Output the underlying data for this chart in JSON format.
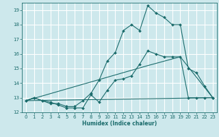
{
  "title": "",
  "xlabel": "Humidex (Indice chaleur)",
  "bg_color": "#cde8ec",
  "grid_color": "#ffffff",
  "line_color": "#1a6b6b",
  "xlim": [
    -0.5,
    23.5
  ],
  "ylim": [
    12,
    19.5
  ],
  "yticks": [
    12,
    13,
    14,
    15,
    16,
    17,
    18,
    19
  ],
  "xticks": [
    0,
    1,
    2,
    3,
    4,
    5,
    6,
    7,
    8,
    9,
    10,
    11,
    12,
    13,
    14,
    15,
    16,
    17,
    18,
    19,
    20,
    21,
    22,
    23
  ],
  "series_flat": {
    "x": [
      0,
      23
    ],
    "y": [
      12.8,
      13.0
    ]
  },
  "series_trap": {
    "x": [
      0,
      15,
      19,
      23
    ],
    "y": [
      12.8,
      15.2,
      15.8,
      13.0
    ]
  },
  "series_lower": {
    "x": [
      0,
      1,
      2,
      3,
      4,
      5,
      6,
      7,
      8,
      9,
      10,
      11,
      12,
      13,
      14,
      15,
      16,
      17,
      18,
      19,
      20,
      21,
      22,
      23
    ],
    "y": [
      12.8,
      13.0,
      12.8,
      12.7,
      12.5,
      12.3,
      12.3,
      12.3,
      13.2,
      12.7,
      13.5,
      14.2,
      14.3,
      14.5,
      15.3,
      16.2,
      16.0,
      15.8,
      15.8,
      15.8,
      13.0,
      13.0,
      13.0,
      13.0
    ]
  },
  "series_upper": {
    "x": [
      0,
      1,
      2,
      3,
      4,
      5,
      6,
      7,
      8,
      9,
      10,
      11,
      12,
      13,
      14,
      15,
      16,
      17,
      18,
      19,
      20,
      21,
      22,
      23
    ],
    "y": [
      12.8,
      13.0,
      12.8,
      12.6,
      12.6,
      12.4,
      12.4,
      12.8,
      13.3,
      14.2,
      15.5,
      16.1,
      17.6,
      18.0,
      17.6,
      19.3,
      18.8,
      18.5,
      18.0,
      18.0,
      15.0,
      14.7,
      13.8,
      13.0
    ]
  }
}
